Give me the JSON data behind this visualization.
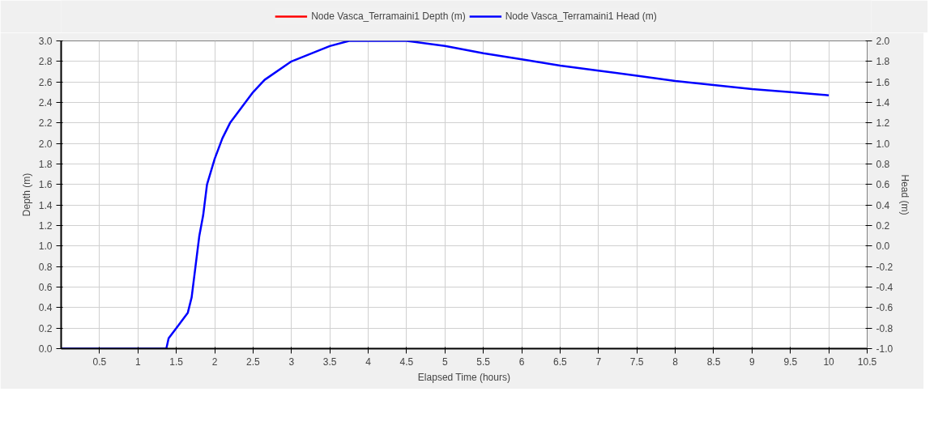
{
  "chart_data": {
    "type": "line",
    "xlabel": "Elapsed Time (hours)",
    "ylabel": "Depth (m)",
    "y2label": "Head (m)",
    "x": [
      0,
      1.37,
      1.4,
      1.5,
      1.65,
      1.7,
      1.75,
      1.8,
      1.85,
      1.9,
      2.0,
      2.1,
      2.2,
      2.35,
      2.5,
      2.65,
      3.0,
      3.5,
      3.75,
      4.5,
      5,
      5.5,
      6,
      6.5,
      7,
      7.5,
      8,
      8.5,
      9,
      9.5,
      10
    ],
    "series": [
      {
        "name": "Node Vasca_Terramaini1 Depth (m)",
        "color": "#ff0000",
        "values": [
          null,
          null,
          null,
          null,
          null,
          null,
          null,
          null,
          null,
          null,
          null,
          null,
          null,
          null,
          null,
          null,
          null,
          null,
          null,
          null,
          null,
          null,
          null,
          null,
          null,
          null,
          null,
          null,
          null,
          null,
          null
        ]
      },
      {
        "name": "Node Vasca_Terramaini1 Head (m)",
        "color": "#0000ff",
        "axis": "y2",
        "values": [
          -1,
          -1,
          -0.9,
          -0.8,
          -0.65,
          -0.5,
          -0.2,
          0.1,
          0.3,
          0.6,
          0.85,
          1.05,
          1.2,
          1.35,
          1.5,
          1.62,
          1.8,
          1.95,
          2.0,
          2.0,
          1.95,
          1.88,
          1.82,
          1.76,
          1.71,
          1.66,
          1.61,
          1.57,
          1.53,
          1.5,
          1.47
        ]
      }
    ],
    "xlim": [
      0,
      10.5
    ],
    "xticks": [
      0.5,
      1,
      1.5,
      2,
      2.5,
      3,
      3.5,
      4,
      4.5,
      5,
      5.5,
      6,
      6.5,
      7,
      7.5,
      8,
      8.5,
      9,
      9.5,
      10,
      10.5
    ],
    "ylim": [
      0,
      3
    ],
    "yticks": [
      {
        "value": 0,
        "label": "0.0"
      },
      0.2,
      0.4,
      0.6,
      0.8,
      {
        "value": 1,
        "label": "1.0"
      },
      1.2,
      1.4,
      1.6,
      1.8,
      {
        "value": 2,
        "label": "2.0"
      },
      2.2,
      2.4,
      2.6,
      2.8,
      {
        "value": 3,
        "label": "3.0"
      }
    ],
    "y2lim": [
      -1,
      2
    ],
    "y2ticks": [
      {
        "value": -1,
        "label": "-1.0"
      },
      -0.8,
      -0.6,
      -0.4,
      -0.2,
      {
        "value": 0,
        "label": "0.0"
      },
      0.2,
      0.4,
      0.6,
      0.8,
      {
        "value": 1,
        "label": "1.0"
      },
      1.2,
      1.4,
      1.6,
      1.8,
      {
        "value": 2,
        "label": "2.0"
      }
    ],
    "grid": true,
    "legend": "top",
    "line_style": "solid",
    "marker": "none"
  }
}
